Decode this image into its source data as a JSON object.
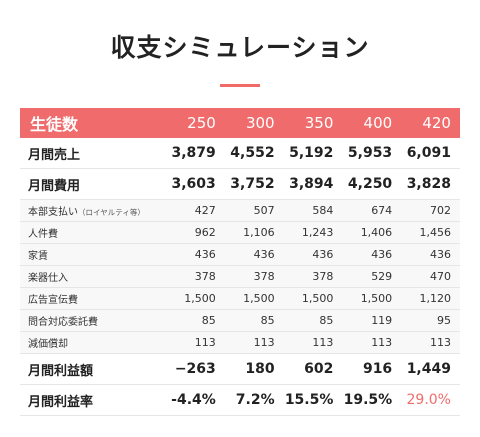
{
  "title": "収支シミュレーション",
  "accent_color": "#f06c6c",
  "header": {
    "label": "生徒数",
    "columns": [
      "250",
      "300",
      "350",
      "400",
      "420"
    ]
  },
  "rows": {
    "sales": {
      "label": "月間売上",
      "values": [
        "3,879",
        "4,552",
        "5,192",
        "5,953",
        "6,091"
      ]
    },
    "costs": {
      "label": "月間費用",
      "values": [
        "3,603",
        "3,752",
        "3,894",
        "4,250",
        "3,828"
      ]
    },
    "royalty": {
      "label": "本部支払い",
      "note": "（ロイヤルティ等）",
      "values": [
        "427",
        "507",
        "584",
        "674",
        "702"
      ]
    },
    "labor": {
      "label": "人件費",
      "values": [
        "962",
        "1,106",
        "1,243",
        "1,406",
        "1,456"
      ]
    },
    "rent": {
      "label": "家賃",
      "values": [
        "436",
        "436",
        "436",
        "436",
        "436"
      ]
    },
    "instruments": {
      "label": "楽器仕入",
      "values": [
        "378",
        "378",
        "378",
        "529",
        "470"
      ]
    },
    "ads": {
      "label": "広告宣伝費",
      "values": [
        "1,500",
        "1,500",
        "1,500",
        "1,500",
        "1,120"
      ]
    },
    "outsourcing": {
      "label": "問合対応委託費",
      "values": [
        "85",
        "85",
        "85",
        "119",
        "95"
      ]
    },
    "depreciation": {
      "label": "減価償却",
      "values": [
        "113",
        "113",
        "113",
        "113",
        "113"
      ]
    },
    "profit": {
      "label": "月間利益額",
      "values": [
        "−263",
        "180",
        "602",
        "916",
        "1,449"
      ]
    },
    "margin": {
      "label": "月間利益率",
      "values": [
        "-4.4%",
        "7.2%",
        "15.5%",
        "19.5%",
        "29.0%"
      ]
    }
  }
}
